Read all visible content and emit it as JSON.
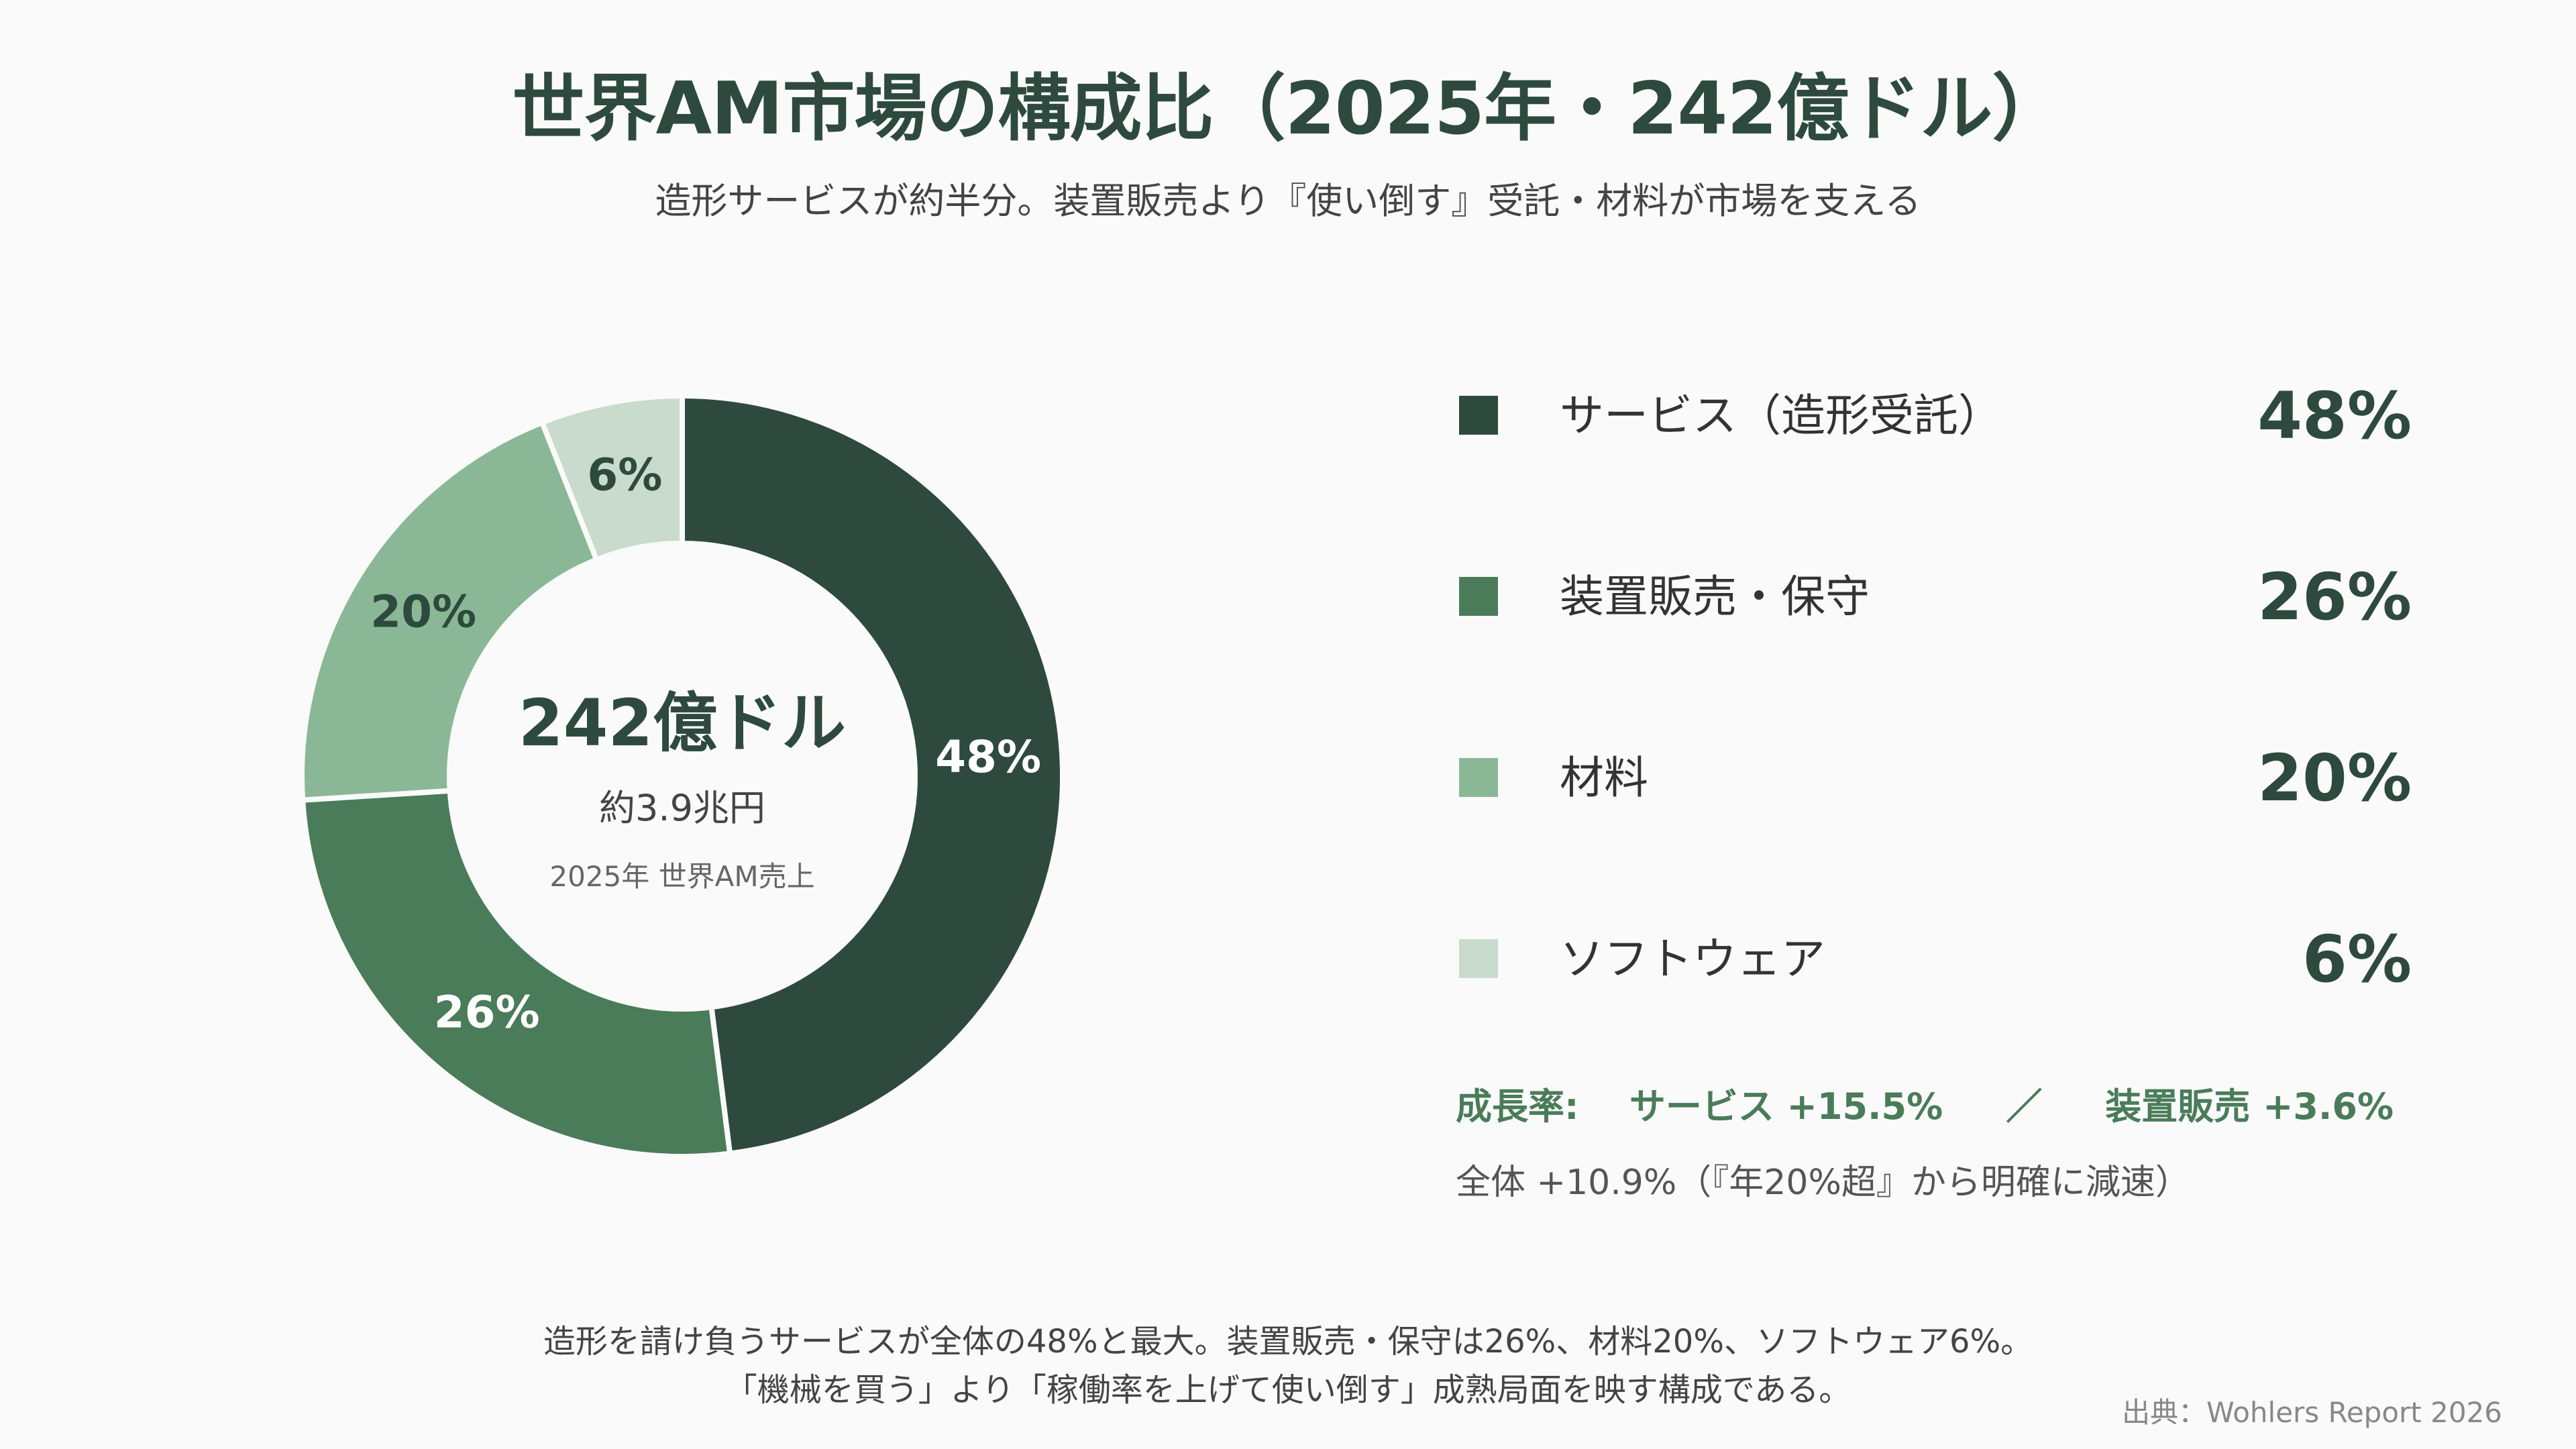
{
  "title": "世界AM市場の構成比（2025年・242億ドル）",
  "subtitle": "造形サービスが約半分。装置販売より『使い倒す』受託・材料が市場を支える",
  "center": {
    "main": "242億ドル",
    "sub": "約3.9兆円",
    "caption": "2025年 世界AM売上"
  },
  "chart_data": {
    "type": "pie",
    "donut": true,
    "categories": [
      "サービス（造形受託）",
      "装置販売・保守",
      "材料",
      "ソフトウェア"
    ],
    "values": [
      48,
      26,
      20,
      6
    ],
    "value_labels": [
      "48%",
      "26%",
      "20%",
      "6%"
    ],
    "colors": [
      "#2e4a3e",
      "#4a7c59",
      "#8ab896",
      "#c8dbcc"
    ],
    "label_colors": [
      "#ffffff",
      "#ffffff",
      "#2e4a3e",
      "#2e4a3e"
    ],
    "legend_position": "right"
  },
  "growth": {
    "label": "成長率:",
    "service": "サービス +15.5%",
    "separator": "／",
    "hardware": "装置販売 +3.6%"
  },
  "overall": "全体 +10.9%（『年20%超』から明確に減速）",
  "footnote": {
    "line1": "造形を請け負うサービスが全体の48%と最大。装置販売・保守は26%、材料20%、ソフトウェア6%。",
    "line2": "「機械を買う」より「稼働率を上げて使い倒す」成熟局面を映す構成である。"
  },
  "source": "出典：Wohlers Report 2026"
}
